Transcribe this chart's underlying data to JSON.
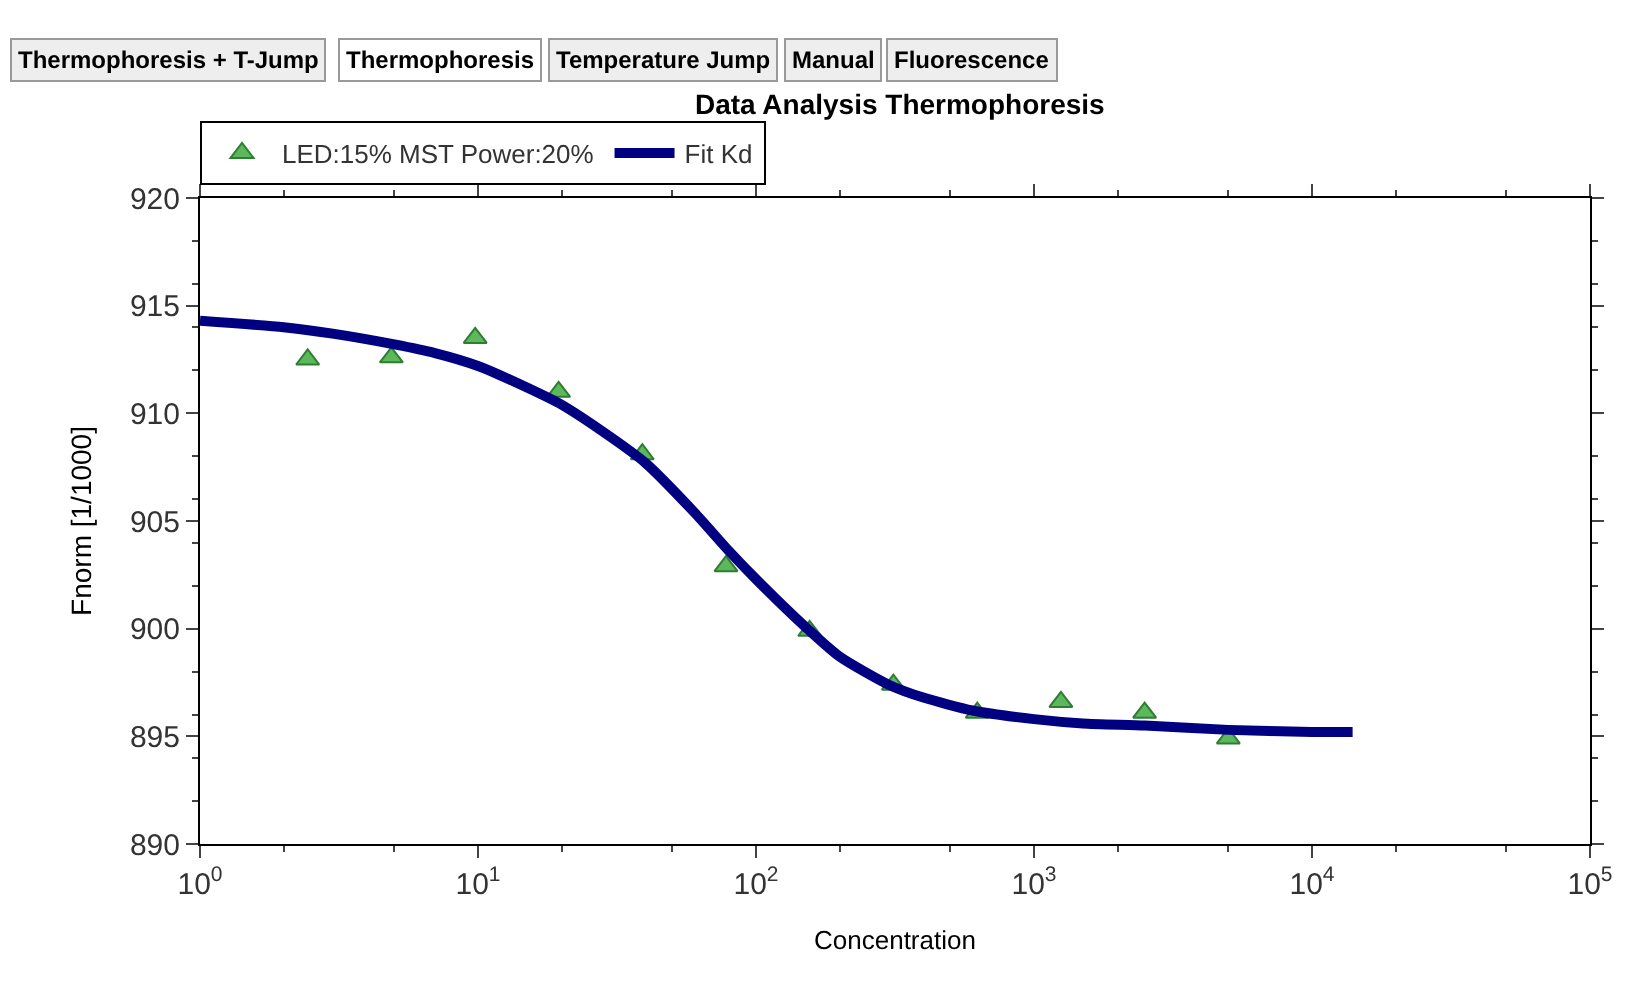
{
  "chart_data": {
    "type": "scatter",
    "title": "Data Analysis Thermophoresis",
    "xlabel": "Concentration",
    "ylabel": "Fnorm [1/1000]",
    "annotations": [
      "Thermophoresis + T-Jump",
      "Thermophoresis",
      "Temperature Jump",
      "Manual",
      "Fluorescence"
    ],
    "series": [
      {
        "name": "LED:15% MST Power:20%",
        "color": "#5cb85c",
        "marker": "triangle",
        "x": [
          2.44,
          4.88,
          9.77,
          19.5,
          39,
          78,
          156,
          312,
          625,
          1250,
          2500,
          5000
        ],
        "values": [
          912.5,
          912.6,
          913.5,
          911.0,
          908.1,
          902.9,
          899.9,
          897.4,
          896.1,
          896.6,
          896.1,
          894.9
        ]
      },
      {
        "name": "Fit Kd",
        "type": "line",
        "color": "#000080",
        "line_style": "solid",
        "x": [
          1,
          2,
          3,
          5,
          7,
          10,
          15,
          20,
          30,
          40,
          60,
          80,
          100,
          150,
          200,
          300,
          400,
          600,
          1000,
          1500,
          2500,
          5000,
          10000,
          14000
        ],
        "values": [
          914.3,
          914.0,
          913.7,
          913.2,
          912.8,
          912.2,
          911.2,
          910.4,
          908.9,
          907.7,
          905.4,
          903.6,
          902.3,
          900.1,
          898.7,
          897.4,
          896.8,
          896.2,
          895.8,
          895.6,
          895.5,
          895.3,
          895.2,
          895.2
        ]
      }
    ],
    "log": "x",
    "xlim": [
      1,
      100000
    ],
    "xticks": [
      {
        "value": 1,
        "label": "10$^{0}$"
      },
      {
        "value": 10,
        "label": "10$^{1}$"
      },
      {
        "value": 100,
        "label": "10$^{2}$"
      },
      {
        "value": 1000,
        "label": "10$^{3}$"
      },
      {
        "value": 10000,
        "label": "10$^{4}$"
      },
      {
        "value": 100000,
        "label": "10$^{5}$"
      }
    ],
    "ylim": [
      890,
      920
    ],
    "yticks": [
      890,
      895,
      900,
      905,
      910,
      915,
      920
    ],
    "legend": "top"
  }
}
